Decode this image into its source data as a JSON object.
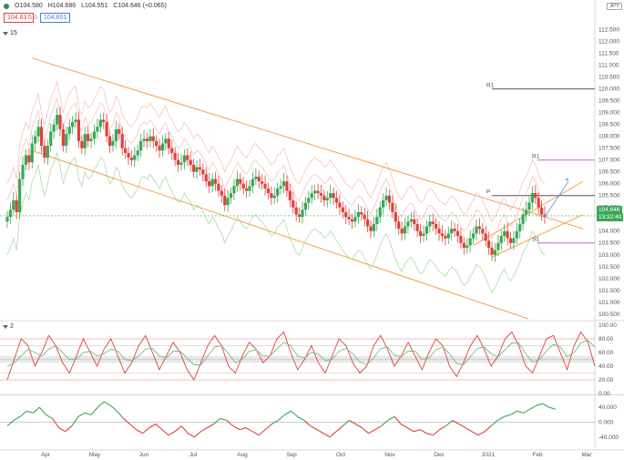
{
  "header": {
    "o_label": "O104.580",
    "h_label": "H104.686",
    "l_label": "L104.551",
    "c_label": "C104.646 (+0.065)",
    "bid": "104.637",
    "spread": "1.0",
    "ask": "104.651",
    "currency": "JPY"
  },
  "panes": {
    "main_tag": "15",
    "osc_tag": "2"
  },
  "current_price": {
    "value": "104.646",
    "countdown": "13:32:40"
  },
  "colors": {
    "up": "#3aa757",
    "down": "#e0413a",
    "channel": "#f4a04a",
    "bands": "#f2a8a8",
    "green_band": "#8cc98c",
    "pivot_r": "#c860d8",
    "arrow": "#6aa0e0"
  },
  "chart_data": [
    {
      "type": "line",
      "title": "",
      "x_ticks": [
        "Apr",
        "May",
        "Jun",
        "Jul",
        "Aug",
        "Sep",
        "Oct",
        "Nov",
        "Dec",
        "2021",
        "Feb",
        "Mar"
      ],
      "y_ticks": [
        "112.500",
        "112.000",
        "111.500",
        "111.000",
        "110.500",
        "110.000",
        "109.500",
        "109.000",
        "108.500",
        "108.000",
        "107.500",
        "107.000",
        "106.500",
        "106.000",
        "105.500",
        "105.000",
        "104.500",
        "104.000",
        "103.500",
        "103.000",
        "102.500",
        "102.000",
        "101.500",
        "101.000",
        "100.500"
      ],
      "ylim": [
        100.3,
        112.6
      ],
      "pivot_levels": [
        {
          "name": "R1",
          "value": 110.0
        },
        {
          "name": "R1",
          "value": 107.0
        },
        {
          "name": "P",
          "value": 105.5
        },
        {
          "name": "S1",
          "value": 103.5
        }
      ],
      "series": [
        {
          "values": [
            104.6,
            104.9,
            105.3,
            104.8,
            106.2,
            106.8,
            107.2,
            106.9,
            107.7,
            108.0,
            108.4,
            107.6,
            107.1,
            107.6,
            108.2,
            108.5,
            108.9,
            108.3,
            107.6,
            108.1,
            108.4,
            108.6,
            108.7,
            107.8,
            107.5,
            108.1,
            107.8,
            107.9,
            108.2,
            108.4,
            108.7,
            108.6,
            108.0,
            107.6,
            107.8,
            108.3,
            108.1,
            107.5,
            107.3,
            107.1,
            107.0,
            107.2,
            107.4,
            107.8,
            107.9,
            107.8,
            108.0,
            107.8,
            107.6,
            107.4,
            107.7,
            107.9,
            107.5,
            107.3,
            107.0,
            106.8,
            106.9,
            107.2,
            107.0,
            106.8,
            106.5,
            106.7,
            106.6,
            106.4,
            106.1,
            105.9,
            106.2,
            106.0,
            105.7,
            105.5,
            105.1,
            105.4,
            105.6,
            105.9,
            106.2,
            106.0,
            105.8,
            105.7,
            105.9,
            106.2,
            106.3,
            106.1,
            106.0,
            105.8,
            105.6,
            105.4,
            105.5,
            105.8,
            105.9,
            106.1,
            105.7,
            105.3,
            105.0,
            104.7,
            104.6,
            104.9,
            105.2,
            105.4,
            105.6,
            105.7,
            105.6,
            105.5,
            105.3,
            105.4,
            105.6,
            105.4,
            105.2,
            105.0,
            104.8,
            104.6,
            104.5,
            104.4,
            104.6,
            104.8,
            104.7,
            104.5,
            104.2,
            104.0,
            104.3,
            104.6,
            105.0,
            105.3,
            105.5,
            105.2,
            104.8,
            104.4,
            104.1,
            103.9,
            104.2,
            104.4,
            104.5,
            104.3,
            104.0,
            103.8,
            103.9,
            104.2,
            104.4,
            104.3,
            104.1,
            103.9,
            103.8,
            103.7,
            103.9,
            104.1,
            104.0,
            103.8,
            103.5,
            103.3,
            103.4,
            103.7,
            103.9,
            104.2,
            104.1,
            103.9,
            103.6,
            103.3,
            103.0,
            103.2,
            103.5,
            103.8,
            104.0,
            103.7,
            103.5,
            103.7,
            104.0,
            104.3,
            104.7,
            104.9,
            105.2,
            105.6,
            105.4,
            105.0,
            104.7,
            104.6
          ]
        }
      ]
    },
    {
      "type": "line",
      "title": "",
      "y_ticks": [
        "100.00",
        "80.00",
        "60.00",
        "40.00",
        "20.00",
        "0.00"
      ],
      "ylim": [
        0,
        100
      ],
      "levels": [
        80,
        70,
        50,
        30,
        20
      ],
      "series": [
        {
          "values": [
            20,
            50,
            80,
            70,
            40,
            60,
            85,
            70,
            45,
            30,
            55,
            80,
            60,
            40,
            65,
            80,
            55,
            30,
            45,
            70,
            85,
            60,
            35,
            55,
            75,
            60,
            35,
            20,
            45,
            70,
            85,
            70,
            40,
            30,
            55,
            75,
            65,
            45,
            55,
            80,
            90,
            60,
            35,
            50,
            70,
            45,
            30,
            55,
            80,
            70,
            45,
            30,
            40,
            70,
            85,
            65,
            40,
            55,
            75,
            55,
            35,
            60,
            80,
            70,
            40,
            25,
            45,
            70,
            85,
            65,
            40,
            55,
            80,
            90,
            70,
            40,
            30,
            55,
            80,
            85,
            60,
            35,
            70,
            90,
            75,
            40
          ]
        },
        {
          "values": [
            40,
            45,
            55,
            65,
            60,
            55,
            65,
            70,
            60,
            50,
            50,
            60,
            62,
            55,
            58,
            65,
            62,
            50,
            48,
            55,
            65,
            66,
            55,
            52,
            62,
            62,
            52,
            42,
            42,
            55,
            68,
            70,
            58,
            45,
            50,
            62,
            64,
            55,
            55,
            65,
            75,
            70,
            55,
            52,
            60,
            58,
            48,
            50,
            62,
            66,
            58,
            46,
            42,
            52,
            66,
            68,
            56,
            54,
            62,
            62,
            50,
            52,
            64,
            68,
            58,
            44,
            42,
            54,
            66,
            68,
            58,
            54,
            64,
            74,
            74,
            58,
            46,
            50,
            62,
            72,
            68,
            54,
            60,
            74,
            78,
            68
          ]
        }
      ]
    },
    {
      "type": "line",
      "title": "",
      "y_ticks": [
        "40.000",
        "0.000",
        "-40.000"
      ],
      "ylim": [
        -70,
        70
      ],
      "series": [
        {
          "values": [
            -10,
            5,
            15,
            30,
            25,
            40,
            20,
            10,
            -15,
            -25,
            -10,
            15,
            25,
            20,
            40,
            55,
            45,
            30,
            10,
            -5,
            -20,
            -30,
            -15,
            -5,
            -20,
            -35,
            -25,
            -10,
            -30,
            -40,
            -25,
            -15,
            -5,
            10,
            5,
            -10,
            -20,
            -15,
            -25,
            -35,
            -20,
            -5,
            5,
            20,
            30,
            15,
            5,
            -10,
            -20,
            -30,
            -40,
            -25,
            -10,
            5,
            -5,
            -15,
            -30,
            -20,
            -10,
            5,
            15,
            -5,
            -15,
            -25,
            -20,
            -30,
            -35,
            -20,
            -10,
            5,
            -5,
            -15,
            -25,
            -35,
            -25,
            -10,
            5,
            15,
            20,
            30,
            25,
            35,
            45,
            50,
            40,
            35
          ]
        }
      ]
    }
  ]
}
